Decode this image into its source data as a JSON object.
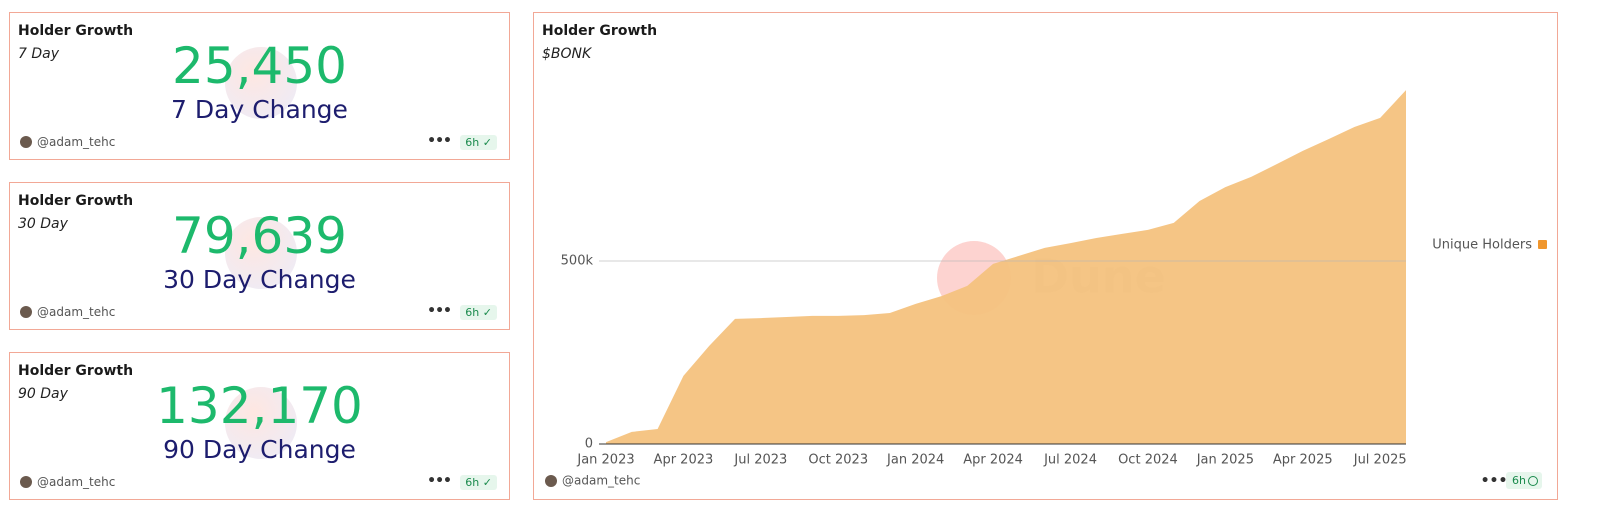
{
  "counters": [
    {
      "title": "Holder Growth",
      "subtitle": "7 Day",
      "value": "25,450",
      "caption": "7 Day Change",
      "author": "@adam_tehc",
      "age": "6h"
    },
    {
      "title": "Holder Growth",
      "subtitle": "30 Day",
      "value": "79,639",
      "caption": "30 Day Change",
      "author": "@adam_tehc",
      "age": "6h"
    },
    {
      "title": "Holder Growth",
      "subtitle": "90 Day",
      "value": "132,170",
      "caption": "90 Day Change",
      "author": "@adam_tehc",
      "age": "6h"
    }
  ],
  "chart_data": {
    "type": "area",
    "title": "Holder Growth",
    "subtitle": "$BONK",
    "watermark": "Dune",
    "author": "@adam_tehc",
    "age": "6h",
    "x": [
      "2023-01",
      "2023-02",
      "2023-03",
      "2023-04",
      "2023-05",
      "2023-06",
      "2023-07",
      "2023-08",
      "2023-09",
      "2023-10",
      "2023-11",
      "2023-12",
      "2024-01",
      "2024-02",
      "2024-03",
      "2024-04",
      "2024-05",
      "2024-06",
      "2024-07",
      "2024-08",
      "2024-09",
      "2024-10",
      "2024-11",
      "2024-12",
      "2025-01",
      "2025-02",
      "2025-03",
      "2025-04",
      "2025-05",
      "2025-06",
      "2025-07",
      "2025-08"
    ],
    "series": [
      {
        "name": "Unique Holders",
        "color": "#f4c27e",
        "legend_color": "#f0962d",
        "values": [
          5000,
          33000,
          41000,
          186000,
          268000,
          342000,
          344000,
          347000,
          350000,
          350000,
          352000,
          358000,
          383000,
          404000,
          432000,
          492000,
          514000,
          536000,
          549000,
          563000,
          574000,
          585000,
          604000,
          664000,
          702000,
          730000,
          765000,
          801000,
          833000,
          866000,
          891000,
          967000
        ]
      }
    ],
    "xlim": [
      "2023-01",
      "2025-08"
    ],
    "xticks": [
      {
        "value": "2023-01",
        "label": "Jan 2023"
      },
      {
        "value": "2023-04",
        "label": "Apr 2023"
      },
      {
        "value": "2023-07",
        "label": "Jul 2023"
      },
      {
        "value": "2023-10",
        "label": "Oct 2023"
      },
      {
        "value": "2024-01",
        "label": "Jan 2024"
      },
      {
        "value": "2024-04",
        "label": "Apr 2024"
      },
      {
        "value": "2024-07",
        "label": "Jul 2024"
      },
      {
        "value": "2024-10",
        "label": "Oct 2024"
      },
      {
        "value": "2025-01",
        "label": "Jan 2025"
      },
      {
        "value": "2025-04",
        "label": "Apr 2025"
      },
      {
        "value": "2025-07",
        "label": "Jul 2025"
      }
    ],
    "ylim": [
      0,
      1000000
    ],
    "yticks": [
      0,
      {
        "value": 500000,
        "label": "500k"
      }
    ],
    "grid": true,
    "legend": "right"
  }
}
